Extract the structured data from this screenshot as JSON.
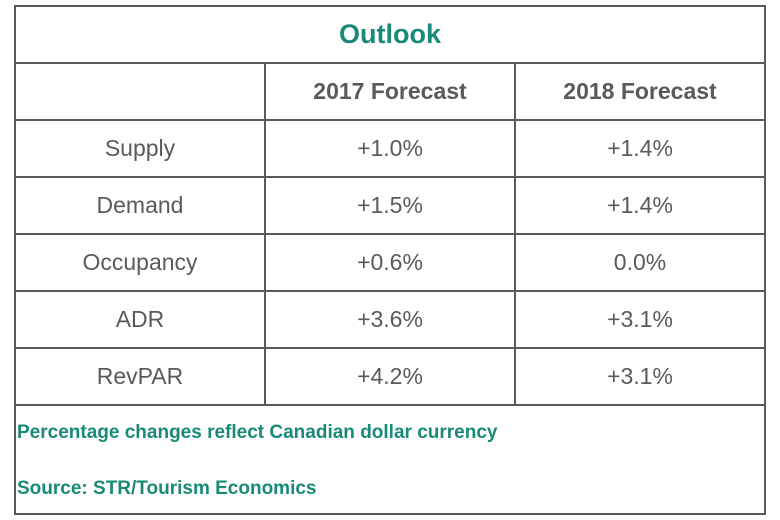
{
  "title": "Outlook",
  "columns": [
    "",
    "2017 Forecast",
    "2018 Forecast"
  ],
  "rows": [
    {
      "label": "Supply",
      "f2017": "+1.0%",
      "f2018": "+1.4%"
    },
    {
      "label": "Demand",
      "f2017": "+1.5%",
      "f2018": "+1.4%"
    },
    {
      "label": "Occupancy",
      "f2017": "+0.6%",
      "f2018": "0.0%"
    },
    {
      "label": "ADR",
      "f2017": "+3.6%",
      "f2018": "+3.1%"
    },
    {
      "label": "RevPAR",
      "f2017": "+4.2%",
      "f2018": "+3.1%"
    }
  ],
  "notes": {
    "currency": "Percentage changes reflect Canadian dollar currency",
    "source": "Source: STR/Tourism Economics"
  }
}
